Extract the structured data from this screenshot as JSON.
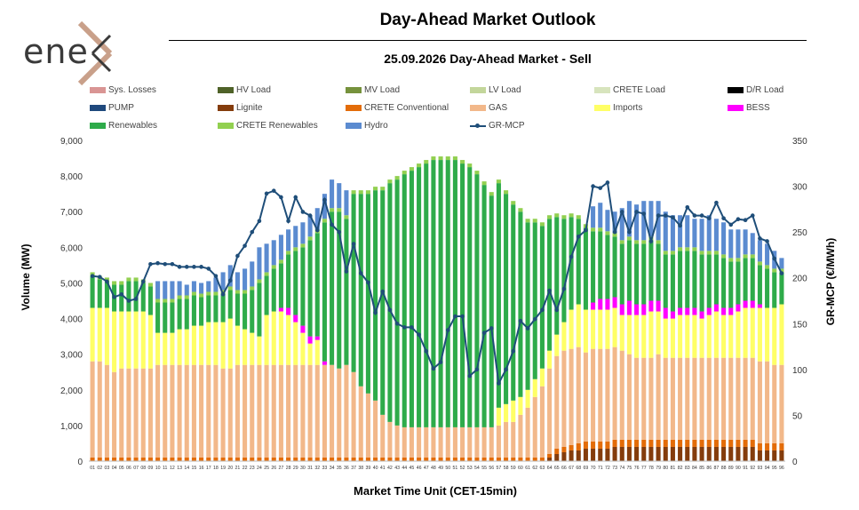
{
  "brand": {
    "logo_text": "ene"
  },
  "header": {
    "title": "Day-Ahead Market Outlook",
    "subtitle": "25.09.2026  Day-Ahead Market - Sell"
  },
  "legend": [
    {
      "label": "Sys. Losses",
      "color": "#d99594"
    },
    {
      "label": "HV Load",
      "color": "#4f6228"
    },
    {
      "label": "MV Load",
      "color": "#76923c"
    },
    {
      "label": "LV Load",
      "color": "#c3d69b"
    },
    {
      "label": "CRETE Load",
      "color": "#d7e4bd"
    },
    {
      "label": "D/R Load",
      "color": "#000000"
    },
    {
      "label": "PUMP",
      "color": "#1f497d"
    },
    {
      "label": "Lignite",
      "color": "#843c0c"
    },
    {
      "label": "CRETE Conventional",
      "color": "#e36c09"
    },
    {
      "label": "GAS",
      "color": "#f2b88a"
    },
    {
      "label": "Imports",
      "color": "#ffff66"
    },
    {
      "label": "BESS",
      "color": "#ff00ff"
    },
    {
      "label": "Renewables",
      "color": "#2eab4a"
    },
    {
      "label": "CRETE Renewables",
      "color": "#92d050"
    },
    {
      "label": "Hydro",
      "color": "#5b8bd0"
    },
    {
      "label": "GR-MCP",
      "color": "#1f4e79",
      "type": "line"
    }
  ],
  "chart_data": {
    "type": "bar",
    "stacked": true,
    "xlabel": "Market Time Unit (CET-15min)",
    "ylabel": "Volume (MW)",
    "y2label": "GR-MCP (€/MWh)",
    "ylim": [
      0,
      9000
    ],
    "y2lim": [
      0,
      350
    ],
    "yticks": [
      "0",
      "1,000",
      "2,000",
      "3,000",
      "4,000",
      "5,000",
      "6,000",
      "7,000",
      "8,000",
      "9,000"
    ],
    "y2ticks": [
      "0",
      "50",
      "100",
      "150",
      "200",
      "250",
      "300",
      "350"
    ],
    "categories": [
      "01",
      "02",
      "03",
      "04",
      "05",
      "06",
      "07",
      "08",
      "09",
      "10",
      "11",
      "12",
      "13",
      "14",
      "15",
      "16",
      "17",
      "18",
      "19",
      "20",
      "21",
      "22",
      "23",
      "24",
      "25",
      "26",
      "27",
      "28",
      "29",
      "30",
      "31",
      "32",
      "33",
      "34",
      "35",
      "36",
      "37",
      "38",
      "39",
      "40",
      "41",
      "42",
      "43",
      "44",
      "45",
      "46",
      "47",
      "48",
      "49",
      "50",
      "51",
      "52",
      "53",
      "54",
      "55",
      "56",
      "57",
      "58",
      "59",
      "60",
      "61",
      "62",
      "63",
      "64",
      "65",
      "66",
      "67",
      "68",
      "69",
      "70",
      "71",
      "72",
      "73",
      "74",
      "75",
      "76",
      "77",
      "78",
      "79",
      "80",
      "81",
      "82",
      "83",
      "84",
      "85",
      "86",
      "87",
      "88",
      "89",
      "90",
      "91",
      "92",
      "93",
      "94",
      "95",
      "96"
    ],
    "series": [
      {
        "name": "Lignite",
        "values": [
          0,
          0,
          0,
          0,
          0,
          0,
          0,
          0,
          0,
          0,
          0,
          0,
          0,
          0,
          0,
          0,
          0,
          0,
          0,
          0,
          0,
          0,
          0,
          0,
          0,
          0,
          0,
          0,
          0,
          0,
          0,
          0,
          0,
          0,
          0,
          0,
          0,
          0,
          0,
          0,
          0,
          0,
          0,
          0,
          0,
          0,
          0,
          0,
          0,
          0,
          0,
          0,
          0,
          0,
          0,
          0,
          0,
          0,
          0,
          0,
          0,
          0,
          0,
          100,
          200,
          250,
          300,
          300,
          350,
          350,
          350,
          350,
          400,
          400,
          400,
          400,
          400,
          400,
          400,
          400,
          400,
          400,
          400,
          400,
          400,
          400,
          400,
          400,
          400,
          400,
          400,
          400,
          300,
          300,
          300,
          300
        ]
      },
      {
        "name": "CRETE Conventional",
        "values": [
          100,
          100,
          100,
          100,
          100,
          100,
          100,
          100,
          100,
          100,
          100,
          100,
          100,
          100,
          100,
          100,
          100,
          100,
          100,
          100,
          100,
          100,
          100,
          100,
          100,
          100,
          100,
          100,
          100,
          100,
          100,
          100,
          100,
          100,
          100,
          100,
          100,
          100,
          100,
          100,
          100,
          100,
          100,
          100,
          100,
          100,
          100,
          100,
          100,
          100,
          100,
          100,
          100,
          100,
          100,
          100,
          100,
          100,
          100,
          100,
          100,
          100,
          100,
          100,
          150,
          150,
          150,
          200,
          200,
          200,
          200,
          200,
          200,
          200,
          200,
          200,
          200,
          200,
          200,
          200,
          200,
          200,
          200,
          200,
          200,
          200,
          200,
          200,
          200,
          200,
          200,
          200,
          200,
          200,
          200,
          200
        ]
      },
      {
        "name": "GAS",
        "values": [
          2700,
          2700,
          2600,
          2400,
          2500,
          2500,
          2500,
          2500,
          2500,
          2600,
          2600,
          2600,
          2600,
          2600,
          2600,
          2600,
          2600,
          2600,
          2500,
          2500,
          2600,
          2600,
          2600,
          2600,
          2600,
          2600,
          2600,
          2600,
          2600,
          2600,
          2600,
          2600,
          2600,
          2600,
          2500,
          2600,
          2400,
          2000,
          1800,
          1600,
          1200,
          1000,
          900,
          850,
          850,
          850,
          850,
          850,
          850,
          850,
          850,
          850,
          850,
          850,
          850,
          850,
          900,
          1000,
          1000,
          1200,
          1400,
          1700,
          2000,
          2400,
          2600,
          2700,
          2700,
          2700,
          2500,
          2600,
          2600,
          2600,
          2600,
          2500,
          2400,
          2300,
          2300,
          2300,
          2400,
          2300,
          2300,
          2300,
          2300,
          2300,
          2300,
          2300,
          2300,
          2300,
          2300,
          2300,
          2300,
          2300,
          2300,
          2300,
          2200,
          2200
        ]
      },
      {
        "name": "Imports",
        "values": [
          1500,
          1500,
          1600,
          1700,
          1600,
          1600,
          1600,
          1600,
          1500,
          900,
          900,
          900,
          1000,
          1000,
          1100,
          1100,
          1200,
          1200,
          1300,
          1400,
          1100,
          1000,
          900,
          800,
          1400,
          1500,
          1500,
          1400,
          1200,
          900,
          600,
          700,
          0,
          0,
          0,
          0,
          0,
          0,
          0,
          0,
          0,
          0,
          0,
          0,
          0,
          0,
          0,
          0,
          0,
          0,
          0,
          0,
          0,
          0,
          0,
          0,
          500,
          500,
          600,
          500,
          500,
          500,
          500,
          500,
          600,
          800,
          1100,
          1200,
          1200,
          1100,
          1100,
          1100,
          1100,
          1000,
          1100,
          1200,
          1200,
          1300,
          1200,
          1100,
          1100,
          1200,
          1200,
          1200,
          1100,
          1200,
          1300,
          1200,
          1200,
          1300,
          1400,
          1400,
          1500,
          1500,
          1600,
          1700
        ]
      },
      {
        "name": "BESS",
        "values": [
          0,
          0,
          0,
          0,
          0,
          0,
          0,
          0,
          0,
          0,
          0,
          0,
          0,
          0,
          0,
          0,
          0,
          0,
          0,
          0,
          0,
          0,
          0,
          0,
          0,
          0,
          100,
          200,
          200,
          200,
          200,
          100,
          100,
          0,
          0,
          0,
          0,
          0,
          0,
          0,
          0,
          0,
          0,
          0,
          0,
          0,
          0,
          0,
          0,
          0,
          0,
          0,
          0,
          0,
          0,
          0,
          0,
          0,
          0,
          0,
          0,
          0,
          0,
          0,
          0,
          0,
          0,
          0,
          0,
          200,
          300,
          300,
          300,
          300,
          400,
          300,
          300,
          300,
          300,
          300,
          200,
          200,
          200,
          200,
          200,
          200,
          200,
          200,
          200,
          200,
          200,
          200,
          100,
          0,
          0,
          0
        ]
      },
      {
        "name": "Renewables",
        "values": [
          900,
          800,
          750,
          750,
          750,
          850,
          850,
          800,
          800,
          850,
          850,
          850,
          850,
          850,
          850,
          800,
          750,
          750,
          800,
          800,
          900,
          1000,
          1200,
          1500,
          1100,
          1200,
          1250,
          1500,
          1800,
          2200,
          2700,
          2900,
          3900,
          4300,
          4400,
          4100,
          5000,
          5400,
          5600,
          5900,
          6300,
          6700,
          6900,
          7100,
          7200,
          7300,
          7400,
          7500,
          7500,
          7500,
          7500,
          7400,
          7300,
          7100,
          6800,
          6500,
          6300,
          5900,
          5500,
          5200,
          4700,
          4400,
          4000,
          3700,
          3300,
          2900,
          2600,
          2400,
          2300,
          2000,
          1900,
          1800,
          1700,
          1700,
          1700,
          1700,
          1700,
          1700,
          1600,
          1500,
          1600,
          1600,
          1600,
          1600,
          1600,
          1500,
          1400,
          1400,
          1300,
          1200,
          1200,
          1200,
          1100,
          1100,
          1000,
          900
        ]
      },
      {
        "name": "CRETE Renewables",
        "values": [
          100,
          100,
          100,
          100,
          100,
          100,
          100,
          100,
          100,
          100,
          100,
          100,
          100,
          100,
          100,
          100,
          100,
          100,
          100,
          100,
          100,
          100,
          100,
          100,
          100,
          100,
          100,
          100,
          100,
          100,
          100,
          100,
          100,
          100,
          100,
          100,
          100,
          100,
          100,
          100,
          100,
          100,
          100,
          100,
          100,
          100,
          100,
          100,
          100,
          100,
          100,
          100,
          100,
          100,
          100,
          100,
          100,
          100,
          100,
          100,
          100,
          100,
          100,
          100,
          100,
          100,
          100,
          100,
          100,
          100,
          100,
          100,
          100,
          100,
          100,
          100,
          100,
          100,
          100,
          100,
          100,
          100,
          100,
          100,
          100,
          100,
          100,
          100,
          100,
          100,
          100,
          100,
          100,
          100,
          100,
          100
        ]
      },
      {
        "name": "Hydro",
        "values": [
          0,
          0,
          0,
          0,
          0,
          0,
          0,
          0,
          0,
          500,
          500,
          500,
          400,
          300,
          300,
          300,
          300,
          400,
          500,
          600,
          500,
          600,
          700,
          900,
          800,
          700,
          700,
          600,
          600,
          600,
          600,
          600,
          700,
          800,
          700,
          700,
          0,
          0,
          0,
          0,
          0,
          0,
          0,
          0,
          0,
          0,
          0,
          0,
          0,
          0,
          0,
          0,
          0,
          0,
          0,
          0,
          0,
          0,
          0,
          0,
          0,
          0,
          0,
          0,
          0,
          0,
          0,
          0,
          0,
          600,
          700,
          600,
          600,
          900,
          1000,
          1000,
          1100,
          1000,
          1100,
          1100,
          1000,
          900,
          900,
          800,
          900,
          1000,
          900,
          900,
          800,
          800,
          700,
          600,
          600,
          600,
          500,
          300
        ]
      }
    ],
    "mcp": [
      202,
      201,
      196,
      179,
      182,
      175,
      177,
      196,
      215,
      216,
      215,
      215,
      212,
      212,
      212,
      212,
      210,
      202,
      182,
      197,
      224,
      235,
      250,
      262,
      292,
      295,
      288,
      262,
      288,
      272,
      268,
      252,
      285,
      258,
      250,
      207,
      237,
      205,
      195,
      162,
      185,
      165,
      150,
      146,
      146,
      138,
      120,
      101,
      108,
      143,
      158,
      158,
      93,
      100,
      140,
      145,
      85,
      100,
      120,
      153,
      145,
      155,
      165,
      186,
      165,
      188,
      223,
      245,
      252,
      300,
      298,
      304,
      250,
      272,
      250,
      272,
      270,
      240,
      268,
      268,
      266,
      257,
      277,
      268,
      268,
      265,
      282,
      265,
      258,
      264,
      263,
      268,
      243,
      240,
      221,
      205
    ],
    "legend_position": "top"
  }
}
